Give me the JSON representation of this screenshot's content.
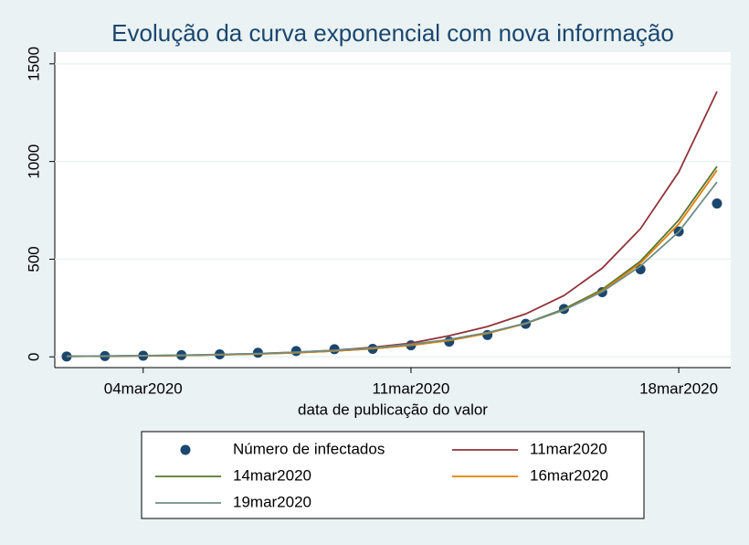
{
  "chart_data": {
    "type": "line",
    "title": "Evolução da curva exponencial com nova informação",
    "x_label": "data de publicação do valor",
    "categories": [
      null,
      null,
      "04mar2020",
      null,
      null,
      null,
      null,
      null,
      null,
      "11mar2020",
      null,
      null,
      null,
      null,
      null,
      null,
      "18mar2020",
      null
    ],
    "ylim": [
      -55,
      1560
    ],
    "yticks": [
      0,
      500,
      1000,
      1500
    ],
    "grid": true,
    "series": [
      {
        "name": "Número de infectados",
        "type": "scatter",
        "color": "#1a476f",
        "values": [
          2,
          4,
          6,
          9,
          13,
          21,
          30,
          39,
          41,
          59,
          78,
          112,
          169,
          245,
          331,
          448,
          642,
          785
        ]
      },
      {
        "name": "11mar2020",
        "type": "line",
        "color": "#90353b",
        "values": [
          2.7,
          3.8,
          5.5,
          8,
          11.5,
          16.5,
          24,
          34,
          49,
          70,
          108,
          155,
          220,
          314,
          454,
          656,
          946,
          1358
        ]
      },
      {
        "name": "14mar2020",
        "type": "line",
        "color": "#55752f",
        "values": [
          2.6,
          3.7,
          5.2,
          7.4,
          10.5,
          15,
          21,
          30,
          42,
          60,
          85,
          121,
          172,
          245,
          345,
          490,
          700,
          975
        ]
      },
      {
        "name": "16mar2020",
        "type": "line",
        "color": "#e37e00",
        "values": [
          2.6,
          3.7,
          5.2,
          7.4,
          10.5,
          15,
          21,
          30,
          42,
          59,
          84,
          120,
          170,
          240,
          338,
          480,
          680,
          955
        ]
      },
      {
        "name": "19mar2020",
        "type": "line",
        "color": "#6e8e84",
        "values": [
          3.3,
          4.5,
          6.3,
          8.8,
          12.3,
          17,
          24,
          33,
          46,
          64,
          89,
          124,
          172,
          240,
          333,
          465,
          640,
          895
        ]
      }
    ]
  }
}
